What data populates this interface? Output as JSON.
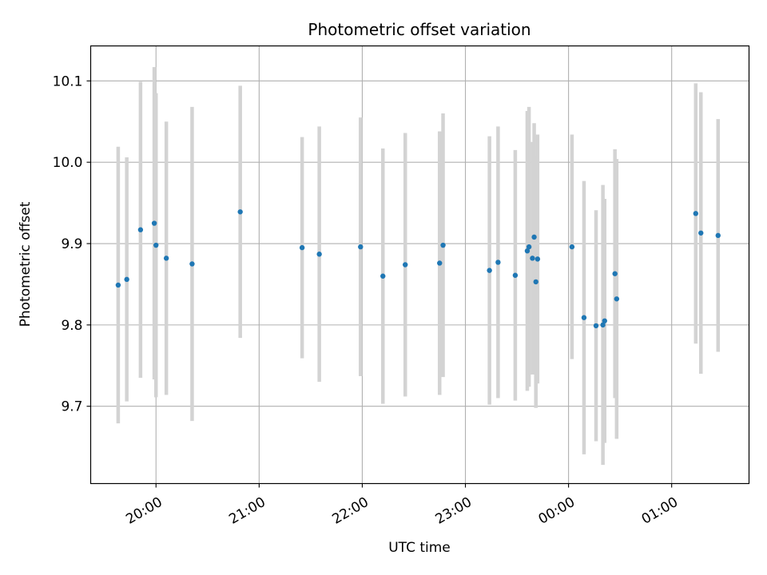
{
  "chart_data": {
    "type": "scatter",
    "title": "Photometric offset variation",
    "xlabel": "UTC time",
    "ylabel": "Photometric offset",
    "x_axis_type": "time",
    "x_tick_labels": [
      "20:00",
      "21:00",
      "22:00",
      "23:00",
      "00:00",
      "01:00"
    ],
    "x_tick_hours": [
      20,
      21,
      22,
      23,
      24,
      25
    ],
    "y_ticks": [
      9.7,
      9.8,
      9.9,
      10.0,
      10.1
    ],
    "y_tick_labels": [
      "9.7",
      "9.8",
      "9.9",
      "10.0",
      "10.1"
    ],
    "xlim": [
      "19:22",
      "01:45"
    ],
    "ylim": [
      9.605,
      10.143
    ],
    "grid": true,
    "colors": {
      "points": "#1f77b4",
      "errorbars": "#d3d3d3",
      "grid": "#b0b0b0"
    },
    "points": [
      {
        "x": "19:38",
        "y": 9.849,
        "err": 0.17
      },
      {
        "x": "19:43",
        "y": 9.856,
        "err": 0.15
      },
      {
        "x": "19:51",
        "y": 9.917,
        "err": 0.182
      },
      {
        "x": "19:59",
        "y": 9.925,
        "err": 0.192
      },
      {
        "x": "20:00",
        "y": 9.898,
        "err": 0.187
      },
      {
        "x": "20:06",
        "y": 9.882,
        "err": 0.168
      },
      {
        "x": "20:21",
        "y": 9.875,
        "err": 0.193
      },
      {
        "x": "20:49",
        "y": 9.939,
        "err": 0.155
      },
      {
        "x": "21:25",
        "y": 9.895,
        "err": 0.136
      },
      {
        "x": "21:35",
        "y": 9.887,
        "err": 0.157
      },
      {
        "x": "21:59",
        "y": 9.896,
        "err": 0.159
      },
      {
        "x": "22:12",
        "y": 9.86,
        "err": 0.157
      },
      {
        "x": "22:25",
        "y": 9.874,
        "err": 0.162
      },
      {
        "x": "22:45",
        "y": 9.876,
        "err": 0.162
      },
      {
        "x": "22:47",
        "y": 9.898,
        "err": 0.162
      },
      {
        "x": "23:14",
        "y": 9.867,
        "err": 0.165
      },
      {
        "x": "23:19",
        "y": 9.877,
        "err": 0.167
      },
      {
        "x": "23:29",
        "y": 9.861,
        "err": 0.154
      },
      {
        "x": "23:36",
        "y": 9.891,
        "err": 0.172
      },
      {
        "x": "23:37",
        "y": 9.896,
        "err": 0.172
      },
      {
        "x": "23:39",
        "y": 9.882,
        "err": 0.143
      },
      {
        "x": "23:40",
        "y": 9.908,
        "err": 0.14
      },
      {
        "x": "23:41",
        "y": 9.853,
        "err": 0.155
      },
      {
        "x": "23:42",
        "y": 9.881,
        "err": 0.153
      },
      {
        "x": "00:02",
        "y": 9.896,
        "err": 0.138
      },
      {
        "x": "00:09",
        "y": 9.809,
        "err": 0.168
      },
      {
        "x": "00:16",
        "y": 9.799,
        "err": 0.142
      },
      {
        "x": "00:20",
        "y": 9.8,
        "err": 0.172
      },
      {
        "x": "00:21",
        "y": 9.805,
        "err": 0.15
      },
      {
        "x": "00:27",
        "y": 9.863,
        "err": 0.153
      },
      {
        "x": "00:28",
        "y": 9.832,
        "err": 0.172
      },
      {
        "x": "01:14",
        "y": 9.937,
        "err": 0.16
      },
      {
        "x": "01:17",
        "y": 9.913,
        "err": 0.173
      },
      {
        "x": "01:27",
        "y": 9.91,
        "err": 0.143
      }
    ]
  }
}
